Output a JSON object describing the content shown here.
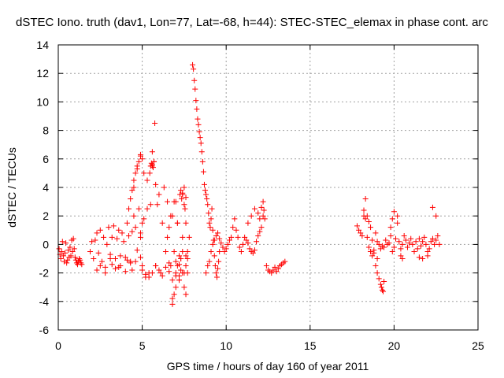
{
  "chart_data": {
    "type": "scatter",
    "title": "dSTEC Iono. truth (dav1, Lon=77, Lat=-68, h=44): STEC-STEC_elemax in phase cont. arc",
    "xlabel": "GPS time / hours of day 160 of year 2011",
    "ylabel": "dSTEC  / TECUs",
    "xlim": [
      0,
      25
    ],
    "ylim": [
      -6,
      14
    ],
    "xticks": [
      0,
      5,
      10,
      15,
      20,
      25
    ],
    "yticks": [
      -6,
      -4,
      -2,
      0,
      2,
      4,
      6,
      8,
      10,
      12,
      14
    ],
    "grid": true,
    "marker": "plus",
    "colors": {
      "series": "#ff0000"
    },
    "series": [
      {
        "x": [
          0.05,
          0.1,
          0.15,
          0.2,
          0.25,
          0.3,
          0.35,
          0.4,
          0.45,
          0.5,
          0.55,
          0.6,
          0.65,
          0.7,
          0.75,
          0.8,
          0.85,
          0.9,
          0.95,
          1.0,
          1.05,
          1.1,
          1.15,
          1.2,
          1.25,
          1.3,
          1.35,
          1.4,
          1.9,
          2.0,
          2.1,
          2.2,
          2.3,
          2.4,
          2.5,
          2.6,
          2.7,
          2.8,
          2.9,
          3.0,
          3.1,
          3.2,
          3.3,
          3.4,
          3.5,
          3.6,
          3.7,
          3.8,
          3.9,
          4.0,
          4.1,
          4.2,
          4.3,
          4.4,
          4.5,
          4.6,
          4.7,
          4.8,
          4.9,
          5.0,
          2.3,
          2.5,
          2.8,
          3.1,
          3.4,
          3.7,
          4.0,
          4.3,
          4.6,
          4.9,
          3.2,
          3.6,
          4.1,
          4.4,
          4.2,
          4.3,
          4.4,
          4.5,
          4.6,
          4.7,
          4.8,
          4.9,
          5.0,
          5.1,
          4.5,
          4.7,
          4.9,
          4.9,
          5.0,
          5.1,
          5.2,
          5.3,
          5.4,
          5.5,
          5.6,
          5.7,
          5.8,
          5.9,
          6.0,
          6.1,
          6.2,
          6.3,
          6.4,
          6.5,
          6.6,
          6.7,
          6.8,
          6.9,
          7.0,
          7.1,
          7.2,
          7.3,
          7.4,
          7.5,
          7.6,
          7.7,
          7.8,
          5.3,
          5.45,
          5.5,
          5.55,
          5.6,
          5.65,
          5.7,
          5.75,
          5.6,
          5.8,
          5.0,
          5.2,
          5.4,
          5.6,
          5.8,
          6.0,
          6.2,
          6.4,
          6.6,
          6.8,
          7.0,
          7.2,
          7.4,
          7.6,
          6.5,
          6.6,
          6.7,
          6.8,
          6.9,
          7.0,
          7.1,
          7.2,
          7.3,
          7.4,
          7.5,
          7.6,
          7.7,
          6.8,
          7.0,
          7.2,
          6.9,
          7.0,
          7.1,
          7.2,
          7.3,
          7.4,
          7.5,
          7.6,
          7.7,
          7.25,
          7.3,
          7.35,
          7.4,
          7.5,
          7.55,
          7.6,
          8.0,
          8.05,
          8.1,
          8.15,
          8.2,
          8.25,
          8.3,
          8.35,
          8.4,
          8.45,
          8.5,
          8.55,
          8.6,
          8.65,
          8.7,
          8.75,
          8.8,
          8.85,
          8.9,
          8.95,
          9.0,
          9.05,
          9.1,
          9.15,
          9.2,
          9.25,
          9.3,
          9.35,
          9.4,
          9.45,
          9.5,
          9.55,
          9.6,
          8.8,
          8.9,
          9.0,
          9.1,
          9.2,
          9.3,
          9.4,
          9.5,
          9.6,
          9.7,
          9.8,
          9.9,
          10.0,
          10.1,
          10.2,
          10.3,
          10.4,
          10.5,
          10.6,
          10.7,
          10.8,
          10.9,
          11.0,
          11.1,
          11.2,
          11.3,
          11.4,
          11.5,
          11.6,
          11.7,
          11.8,
          11.9,
          12.0,
          12.1,
          12.2,
          11.3,
          11.5,
          11.7,
          11.9,
          12.0,
          12.1,
          12.2,
          12.25,
          12.3,
          12.4,
          12.5,
          12.6,
          12.7,
          12.8,
          12.9,
          13.0,
          13.1,
          13.2,
          13.3,
          13.4,
          13.5,
          17.8,
          17.9,
          18.0,
          18.1,
          18.2,
          18.3,
          18.4,
          18.5,
          18.6,
          18.7,
          18.8,
          18.9,
          19.0,
          19.1,
          19.2,
          19.3,
          19.4,
          19.5,
          19.6,
          19.7,
          19.8,
          19.9,
          20.0,
          20.1,
          20.2,
          20.3,
          20.4,
          20.5,
          20.6,
          20.7,
          20.8,
          20.9,
          21.0,
          21.1,
          21.2,
          21.3,
          21.4,
          21.5,
          21.6,
          21.7,
          21.8,
          21.9,
          22.0,
          22.1,
          22.2,
          22.3,
          22.4,
          22.5,
          22.6,
          22.7,
          18.2,
          18.3,
          18.4,
          18.5,
          18.6,
          18.7,
          18.8,
          19.0,
          18.9,
          19.0,
          19.1,
          19.2,
          19.25,
          19.3,
          19.35,
          19.4,
          19.8,
          19.9,
          20.0,
          20.2,
          20.4,
          20.5,
          21.5,
          21.7,
          22.0,
          22.3,
          22.5
        ],
        "y": [
          -0.3,
          -0.7,
          -1.0,
          -0.5,
          0.2,
          -0.8,
          -1.2,
          -0.6,
          0.1,
          -1.3,
          -1.1,
          -0.4,
          -0.9,
          -0.2,
          -0.8,
          0.3,
          -0.5,
          0.4,
          -0.3,
          -0.9,
          -1.1,
          -1.3,
          -1.4,
          -1.2,
          -1.0,
          -1.1,
          -1.3,
          -1.4,
          -0.5,
          0.2,
          -1.0,
          0.3,
          0.8,
          -0.6,
          1.0,
          -1.2,
          0.5,
          -1.6,
          0.0,
          1.2,
          -0.7,
          0.5,
          1.3,
          -1.0,
          0.4,
          1.0,
          -1.5,
          0.8,
          0.2,
          -0.9,
          1.5,
          0.6,
          -1.2,
          0.9,
          2.0,
          1.2,
          -0.4,
          2.5,
          0.8,
          1.5,
          -1.8,
          -1.5,
          -2.0,
          -1.0,
          -1.7,
          -0.8,
          -1.9,
          -1.3,
          -1.2,
          -0.9,
          -1.4,
          -1.6,
          -1.1,
          -1.8,
          2.5,
          3.2,
          3.8,
          4.5,
          5.0,
          5.5,
          5.8,
          6.2,
          6.0,
          5.0,
          4.0,
          5.3,
          6.3,
          0.5,
          -1.5,
          1.8,
          -2.3,
          2.5,
          -2.0,
          2.8,
          5.5,
          5.8,
          -1.5,
          2.8,
          3.5,
          -2.0,
          1.5,
          4.0,
          -0.5,
          3.0,
          -1.3,
          2.0,
          -3.8,
          3.0,
          -2.0,
          1.5,
          -2.5,
          -1.0,
          0.5,
          -3.0,
          -1.5,
          -0.5,
          0.5,
          4.5,
          5.0,
          5.5,
          5.7,
          5.6,
          5.4,
          5.8,
          8.5,
          6.5,
          4.2,
          -1.8,
          -2.1,
          -2.3,
          -2.0,
          -1.5,
          -1.8,
          -2.2,
          -1.6,
          -1.9,
          -2.5,
          -2.2,
          -1.4,
          -2.0,
          -0.8,
          0.5,
          1.2,
          -1.5,
          2.0,
          -3.5,
          3.0,
          1.5,
          -0.8,
          -1.0,
          -0.5,
          -2.0,
          -3.5,
          -1.0,
          -4.2,
          -3.0,
          -2.5,
          -0.5,
          -1.2,
          -1.5,
          -2.2,
          -1.8,
          3.5,
          4.0,
          1.5,
          -2.0,
          3.5,
          3.8,
          3.2,
          3.6,
          2.8,
          2.5,
          3.3,
          12.6,
          12.3,
          11.5,
          10.9,
          10.1,
          9.5,
          8.8,
          8.4,
          7.9,
          7.5,
          7.1,
          6.5,
          5.8,
          5.1,
          4.2,
          3.8,
          3.5,
          3.2,
          2.8,
          2.2,
          1.5,
          1.2,
          1.8,
          2.5,
          1.0,
          0.3,
          -0.8,
          -1.5,
          -2.0,
          -2.3,
          -1.7,
          -1.2,
          -0.5,
          -2.0,
          -1.5,
          -1.2,
          -0.5,
          0.0,
          0.3,
          0.6,
          0.8,
          0.4,
          0.1,
          -0.2,
          -0.5,
          -0.3,
          0.0,
          0.3,
          0.5,
          1.2,
          1.8,
          1.0,
          0.5,
          -0.2,
          -0.5,
          0.0,
          0.5,
          0.3,
          0.1,
          -0.3,
          -0.5,
          -0.6,
          -0.4,
          0.2,
          0.6,
          0.9,
          1.2,
          2.0,
          1.5,
          2.0,
          2.5,
          2.2,
          1.8,
          2.6,
          3.0,
          2.4,
          1.8,
          -1.5,
          -1.8,
          -1.9,
          -2.0,
          -1.8,
          -1.6,
          -1.9,
          -1.7,
          -1.5,
          -1.4,
          -1.3,
          -1.2,
          1.3,
          1.0,
          0.8,
          0.6,
          2.0,
          1.8,
          0.5,
          -0.2,
          1.2,
          0.3,
          -0.4,
          0.8,
          0.2,
          0.0,
          -0.3,
          -0.1,
          -0.2,
          0.3,
          0.0,
          0.1,
          0.6,
          -0.5,
          -0.2,
          0.4,
          1.5,
          0.2,
          -0.3,
          0.0,
          0.6,
          0.3,
          -0.2,
          0.1,
          0.4,
          0.0,
          -0.5,
          0.2,
          -0.3,
          0.4,
          -0.1,
          0.2,
          0.5,
          0.0,
          -0.8,
          -0.3,
          0.2,
          0.4,
          0.0,
          0.3,
          0.6,
          0.0,
          2.4,
          3.2,
          2.0,
          1.6,
          -0.5,
          -0.8,
          -0.6,
          -1.0,
          -1.5,
          -2.0,
          -2.4,
          -2.8,
          -3.0,
          -3.2,
          -3.3,
          -2.6,
          1.2,
          1.8,
          2.3,
          2.0,
          -0.8,
          -1.0,
          -0.9,
          -1.0,
          -0.5,
          2.6,
          2.0
        ]
      }
    ]
  }
}
